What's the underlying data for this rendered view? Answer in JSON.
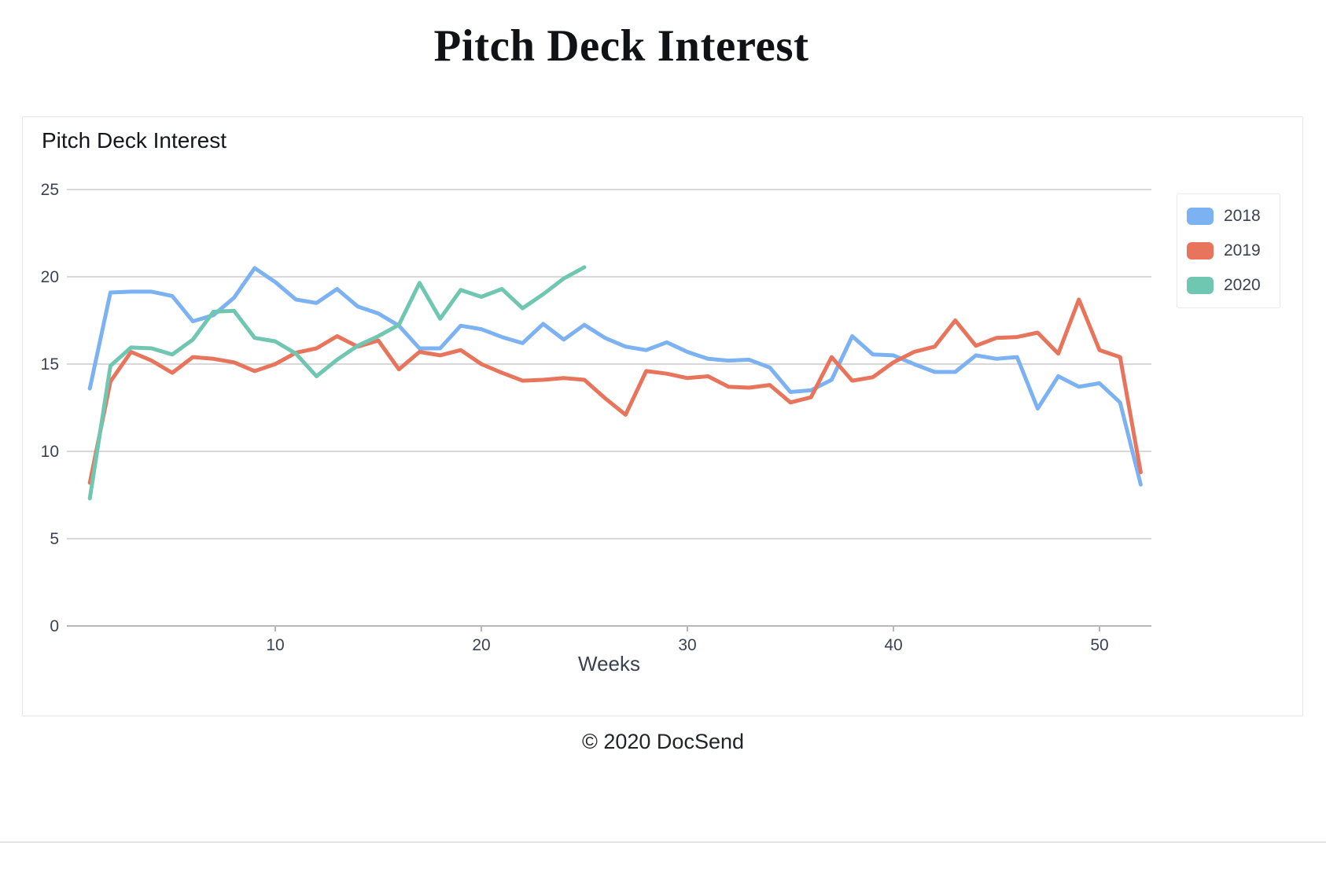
{
  "page": {
    "title": "Pitch Deck Interest"
  },
  "card": {
    "chart_title": "Pitch Deck Interest"
  },
  "footer": {
    "copyright": "© 2020 DocSend"
  },
  "colors": {
    "accent_blue": "#7cb2f2",
    "accent_orange": "#e8745c",
    "accent_teal": "#70c7b1",
    "axis_text": "#3b4252",
    "grid": "#cbcbcf",
    "axis_line": "#b7b7bb",
    "card_border": "#e6e6ea"
  },
  "chart_data": {
    "type": "line",
    "title": "Pitch Deck Interest",
    "xlabel": "Weeks",
    "ylabel": "",
    "xlim": [
      1,
      53
    ],
    "ylim": [
      0,
      25
    ],
    "x_ticks": [
      10,
      20,
      30,
      40,
      50
    ],
    "y_ticks": [
      0,
      5,
      10,
      15,
      20,
      25
    ],
    "grid": true,
    "legend_position": "right",
    "x_unit": "week",
    "series": [
      {
        "name": "2018",
        "color": "#7cb2f2",
        "start_week": 1,
        "values": [
          13.6,
          19.1,
          19.15,
          19.15,
          18.9,
          17.45,
          17.8,
          18.8,
          20.5,
          19.7,
          18.7,
          18.5,
          19.3,
          18.3,
          17.9,
          17.2,
          15.9,
          15.9,
          17.2,
          17.0,
          16.55,
          16.2,
          17.3,
          16.4,
          17.25,
          16.5,
          16.0,
          15.8,
          16.25,
          15.7,
          15.3,
          15.2,
          15.25,
          14.8,
          13.4,
          13.5,
          14.1,
          16.6,
          15.55,
          15.5,
          15.0,
          14.55,
          14.55,
          15.5,
          15.3,
          15.4,
          12.45,
          14.3,
          13.7,
          13.9,
          12.8,
          8.1
        ]
      },
      {
        "name": "2019",
        "color": "#e8745c",
        "start_week": 1,
        "values": [
          8.2,
          14.0,
          15.7,
          15.2,
          14.5,
          15.4,
          15.3,
          15.1,
          14.6,
          15.0,
          15.65,
          15.9,
          16.6,
          16.0,
          16.35,
          14.7,
          15.7,
          15.5,
          15.8,
          15.0,
          14.5,
          14.05,
          14.1,
          14.2,
          14.1,
          13.05,
          12.1,
          14.6,
          14.45,
          14.2,
          14.3,
          13.7,
          13.65,
          13.8,
          12.8,
          13.1,
          15.4,
          14.05,
          14.25,
          15.1,
          15.7,
          16.0,
          17.5,
          16.05,
          16.5,
          16.55,
          16.8,
          15.6,
          18.7,
          15.8,
          15.4,
          8.8
        ]
      },
      {
        "name": "2020",
        "color": "#70c7b1",
        "start_week": 1,
        "values": [
          7.3,
          14.9,
          15.95,
          15.9,
          15.55,
          16.4,
          18.0,
          18.05,
          16.5,
          16.3,
          15.6,
          14.3,
          15.25,
          16.05,
          16.6,
          17.25,
          19.65,
          17.6,
          19.25,
          18.85,
          19.3,
          18.2,
          19.0,
          19.9,
          20.55
        ]
      }
    ]
  }
}
